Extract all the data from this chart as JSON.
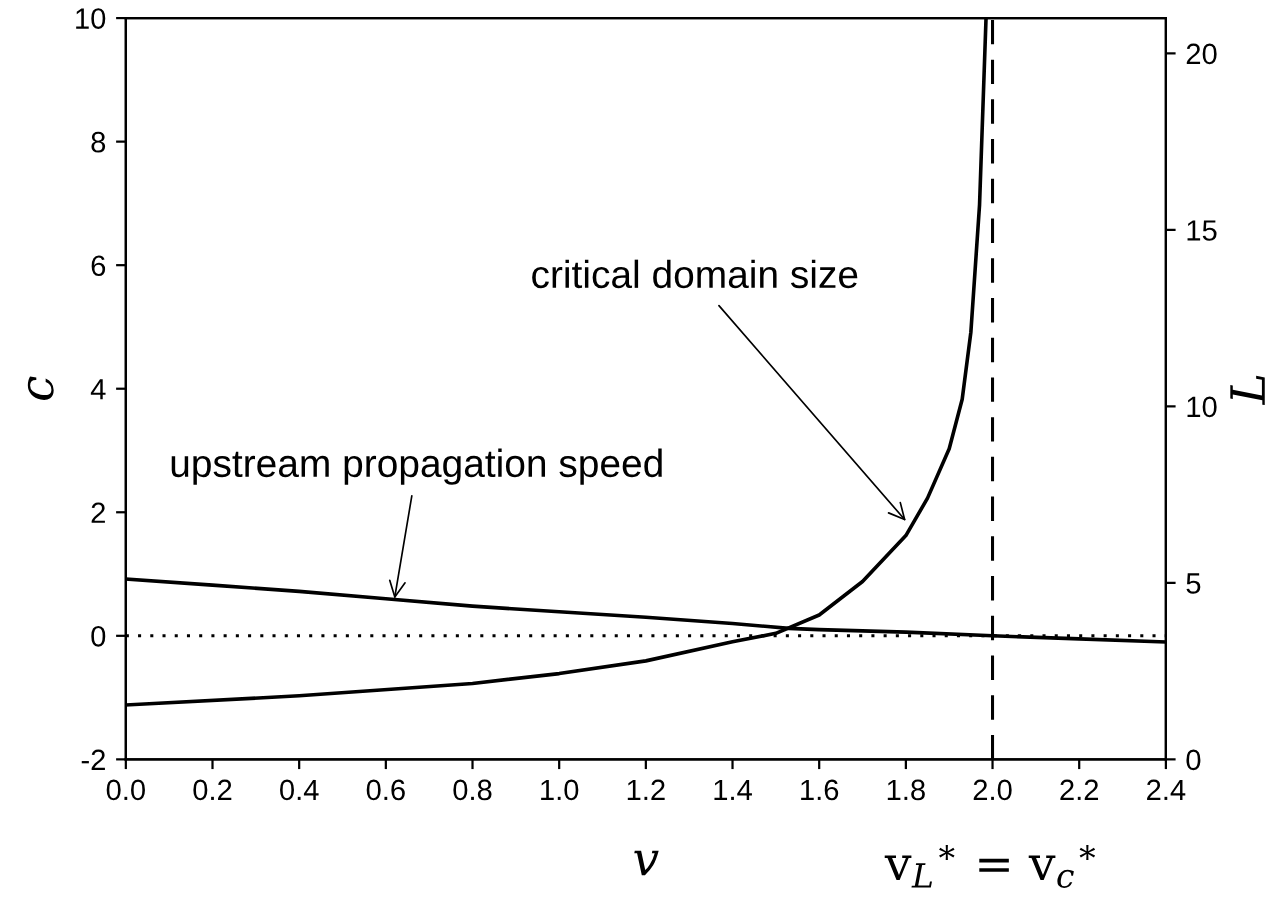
{
  "chart_data": {
    "type": "line",
    "xlabel": "v",
    "ylabel": "c",
    "y2label": "L",
    "series": [
      {
        "color": "#000000",
        "axis": "y",
        "x": [
          0,
          0.2,
          0.4,
          0.6,
          0.8,
          1.0,
          1.2,
          1.4,
          1.53,
          1.6,
          1.8,
          2.0,
          2.2,
          2.4
        ],
        "values": [
          0.92,
          0.82,
          0.72,
          0.6,
          0.48,
          0.39,
          0.3,
          0.2,
          0.12,
          0.1,
          0.06,
          0,
          -0.05,
          -0.1
        ]
      },
      {
        "color": "#000000",
        "axis": "y2",
        "x": [
          0,
          0.4,
          0.8,
          1.0,
          1.2,
          1.4,
          1.5,
          1.6,
          1.7,
          1.8,
          1.85,
          1.9,
          1.93,
          1.95,
          1.97,
          1.985
        ],
        "values": [
          1.54,
          1.8,
          2.15,
          2.43,
          2.79,
          3.33,
          3.57,
          4.09,
          5.04,
          6.34,
          7.4,
          8.8,
          10.2,
          12.1,
          15.7,
          21
        ]
      }
    ],
    "xlim": [
      0,
      2.4
    ],
    "xticks": [
      {
        "value": 0,
        "label": "0.0"
      },
      {
        "value": 0.2,
        "label": "0.2"
      },
      {
        "value": 0.4,
        "label": "0.4"
      },
      {
        "value": 0.6,
        "label": "0.6"
      },
      {
        "value": 0.8,
        "label": "0.8"
      },
      {
        "value": 1.0,
        "label": "1.0"
      },
      {
        "value": 1.2,
        "label": "1.2"
      },
      {
        "value": 1.4,
        "label": "1.4"
      },
      {
        "value": 1.6,
        "label": "1.6"
      },
      {
        "value": 1.8,
        "label": "1.8"
      },
      {
        "value": 2.0,
        "label": "2.0"
      },
      {
        "value": 2.2,
        "label": "2.2"
      },
      {
        "value": 2.4,
        "label": "2.4"
      }
    ],
    "ylim": [
      -2,
      10
    ],
    "yticks": [
      -2,
      0,
      2,
      4,
      6,
      8,
      10
    ],
    "y2lim": [
      0,
      21
    ],
    "y2ticks": [
      0,
      5,
      10,
      15,
      20
    ],
    "ref_lines": [
      {
        "axis": "y",
        "value": 0,
        "line_style": "dotted",
        "color": "#000000"
      },
      {
        "axis": "x",
        "value": 2.0,
        "line_style": "dashed",
        "color": "#000000",
        "label": "v$_{L}$$^{∗}$ = v$_{c}$$^{∗}$"
      }
    ],
    "annotations": [
      {
        "text": "upstream propagation speed",
        "x": 0.62,
        "y": 0.6
      },
      {
        "text": "critical domain size",
        "x": 1.8,
        "y": 1.86
      }
    ],
    "grid": false,
    "legend": false,
    "line_style": "solid",
    "marker": "none"
  }
}
